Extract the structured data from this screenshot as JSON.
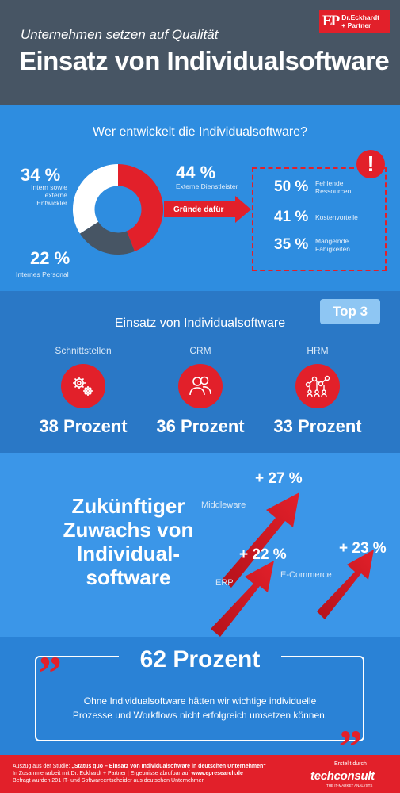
{
  "header": {
    "subtitle": "Unternehmen setzen auf Qualität",
    "title": "Einsatz von Individualsoftware",
    "logo_mark": "EP",
    "logo_line1": "Dr.Eckhardt",
    "logo_line2": "+ Partner"
  },
  "section1": {
    "title": "Wer entwickelt die Individualsoftware?",
    "segments": [
      {
        "pct": "44 %",
        "label": "Externe Dienstleister",
        "value": 44,
        "color": "#e2202a"
      },
      {
        "pct": "22 %",
        "label": "Internes Personal",
        "value": 22,
        "color": "#475564"
      },
      {
        "pct": "34 %",
        "label_lines": [
          "Intern sowie",
          "externe",
          "Entwickler"
        ],
        "value": 34,
        "color": "#ffffff"
      }
    ],
    "arrow_label": "Gründe dafür",
    "alert_icon": "!",
    "reasons": [
      {
        "pct": "50 %",
        "label_lines": [
          "Fehlende",
          "Ressourcen"
        ]
      },
      {
        "pct": "41 %",
        "label_lines": [
          "Kostenvorteile"
        ]
      },
      {
        "pct": "35 %",
        "label_lines": [
          "Mangelnde",
          "Fähigkeiten"
        ]
      }
    ]
  },
  "section2": {
    "badge": "Top 3",
    "title": "Einsatz von Individualsoftware",
    "items": [
      {
        "label": "Schnittstellen",
        "value": "38 Prozent",
        "icon": "gears-icon"
      },
      {
        "label": "CRM",
        "value": "36 Prozent",
        "icon": "people-icon"
      },
      {
        "label": "HRM",
        "value": "33 Prozent",
        "icon": "network-icon"
      }
    ]
  },
  "section3": {
    "title_lines": [
      "Zukünftiger",
      "Zuwachs von",
      "Individual-",
      "software"
    ],
    "growth": [
      {
        "label": "Middleware",
        "pct": "+ 27 %"
      },
      {
        "label": "ERP",
        "pct": "+ 22 %"
      },
      {
        "label": "E-Commerce",
        "pct": "+ 23 %"
      }
    ]
  },
  "section4": {
    "headline": "62 Prozent",
    "text_lines": [
      "Ohne Individualsoftware hätten wir wichtige individuelle",
      "Prozesse und Workflows nicht erfolgreich umsetzen können."
    ],
    "open_quote": "”",
    "close_quote": "„"
  },
  "footer": {
    "line1_prefix": "Auszug aus der Studie: ",
    "line1_study": "„Status quo – Einsatz von Individualsoftware in deutschen Unternehmen“",
    "line2_prefix": "In Zusammenarbeit mit Dr. Eckhardt + Partner | Ergebnisse abrufbar auf ",
    "line2_url": "www.epresearch.de",
    "line3": "Befragt wurden 201 IT- und Softwareentscheider aus deutschen Unternehmen",
    "by": "Erstellt durch",
    "brand": "techconsult",
    "brand_sub": "THE IT-MARKET ANALYSTS"
  },
  "colors": {
    "red": "#e2202a",
    "dark": "#475564",
    "blue": "#2e8de0"
  }
}
